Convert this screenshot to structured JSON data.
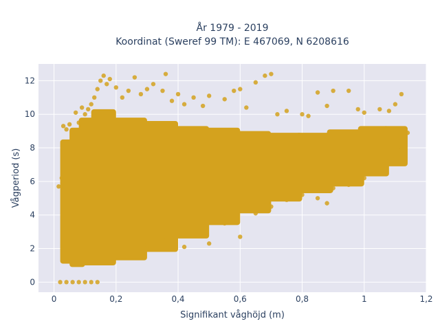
{
  "chart_data": {
    "type": "scatter",
    "title": "År 1979 - 2019",
    "subtitle": "Koordinat (Sweref 99 TM): E 467069, N 6208616",
    "xlabel": "Signifikant våghöjd (m)",
    "ylabel": "Vågperiod (s)",
    "xlim": [
      -0.05,
      1.2
    ],
    "ylim": [
      -0.6,
      13.0
    ],
    "xticks": [
      0,
      0.2,
      0.4,
      0.6,
      0.8,
      1,
      1.2
    ],
    "xtick_labels": [
      "0",
      "0,2",
      "0,4",
      "0,6",
      "0,8",
      "1",
      "1,2"
    ],
    "yticks": [
      0,
      2,
      4,
      6,
      8,
      10,
      12
    ],
    "ytick_labels": [
      "0",
      "2",
      "4",
      "6",
      "8",
      "10",
      "12"
    ],
    "grid": true,
    "background": "#e5e5f0",
    "marker_color": "#d4a21e",
    "points": [
      [
        0.02,
        0.0
      ],
      [
        0.04,
        0.0
      ],
      [
        0.06,
        0.0
      ],
      [
        0.08,
        0.0
      ],
      [
        0.1,
        0.0
      ],
      [
        0.12,
        0.0
      ],
      [
        0.14,
        0.0
      ],
      [
        0.015,
        5.7
      ],
      [
        0.025,
        6.2
      ],
      [
        0.03,
        9.3
      ],
      [
        0.04,
        9.1
      ],
      [
        0.05,
        9.4
      ],
      [
        0.06,
        8.9
      ],
      [
        0.065,
        8.6
      ],
      [
        0.07,
        10.1
      ],
      [
        0.08,
        9.5
      ],
      [
        0.09,
        10.4
      ],
      [
        0.1,
        10.0
      ],
      [
        0.11,
        10.3
      ],
      [
        0.12,
        10.6
      ],
      [
        0.13,
        11.0
      ],
      [
        0.14,
        11.5
      ],
      [
        0.15,
        12.0
      ],
      [
        0.16,
        12.3
      ],
      [
        0.17,
        11.8
      ],
      [
        0.18,
        12.1
      ],
      [
        0.2,
        11.6
      ],
      [
        0.22,
        11.0
      ],
      [
        0.24,
        11.4
      ],
      [
        0.26,
        12.2
      ],
      [
        0.28,
        11.2
      ],
      [
        0.3,
        11.5
      ],
      [
        0.32,
        11.8
      ],
      [
        0.35,
        11.4
      ],
      [
        0.36,
        12.4
      ],
      [
        0.38,
        10.8
      ],
      [
        0.4,
        11.2
      ],
      [
        0.42,
        10.6
      ],
      [
        0.45,
        11.0
      ],
      [
        0.48,
        10.5
      ],
      [
        0.5,
        11.1
      ],
      [
        0.55,
        10.9
      ],
      [
        0.58,
        11.4
      ],
      [
        0.6,
        11.5
      ],
      [
        0.62,
        10.4
      ],
      [
        0.65,
        11.9
      ],
      [
        0.68,
        12.3
      ],
      [
        0.7,
        12.4
      ],
      [
        0.72,
        10.0
      ],
      [
        0.75,
        10.2
      ],
      [
        0.8,
        10.0
      ],
      [
        0.82,
        9.9
      ],
      [
        0.85,
        11.3
      ],
      [
        0.88,
        10.5
      ],
      [
        0.9,
        11.4
      ],
      [
        0.95,
        11.4
      ],
      [
        0.98,
        10.3
      ],
      [
        1.0,
        10.1
      ],
      [
        1.05,
        10.3
      ],
      [
        1.08,
        10.2
      ],
      [
        1.1,
        10.6
      ],
      [
        1.12,
        11.2
      ],
      [
        1.14,
        8.9
      ],
      [
        0.3,
        2.2
      ],
      [
        0.35,
        2.6
      ],
      [
        0.42,
        2.1
      ],
      [
        0.45,
        3.1
      ],
      [
        0.5,
        2.3
      ],
      [
        0.55,
        3.5
      ],
      [
        0.6,
        2.7
      ],
      [
        0.65,
        4.1
      ],
      [
        0.7,
        4.5
      ],
      [
        0.75,
        4.9
      ],
      [
        0.8,
        5.2
      ],
      [
        0.85,
        5.0
      ],
      [
        0.88,
        4.7
      ],
      [
        0.9,
        5.6
      ],
      [
        0.95,
        5.8
      ],
      [
        1.0,
        6.2
      ],
      [
        1.05,
        6.7
      ],
      [
        1.08,
        7.2
      ],
      [
        1.1,
        7.5
      ],
      [
        1.12,
        7.9
      ],
      [
        1.13,
        8.5
      ]
    ],
    "density_bands": [
      {
        "x0": 0.02,
        "x1": 0.06,
        "y0": 1.1,
        "y1": 8.5
      },
      {
        "x0": 0.05,
        "x1": 0.1,
        "y0": 0.9,
        "y1": 9.2
      },
      {
        "x0": 0.08,
        "x1": 0.15,
        "y0": 1.0,
        "y1": 9.8
      },
      {
        "x0": 0.12,
        "x1": 0.2,
        "y0": 1.0,
        "y1": 10.3
      },
      {
        "x0": 0.18,
        "x1": 0.3,
        "y0": 1.3,
        "y1": 9.8
      },
      {
        "x0": 0.28,
        "x1": 0.4,
        "y0": 1.8,
        "y1": 9.6
      },
      {
        "x0": 0.38,
        "x1": 0.5,
        "y0": 2.6,
        "y1": 9.3
      },
      {
        "x0": 0.48,
        "x1": 0.6,
        "y0": 3.4,
        "y1": 9.2
      },
      {
        "x0": 0.58,
        "x1": 0.7,
        "y0": 4.1,
        "y1": 9.0
      },
      {
        "x0": 0.68,
        "x1": 0.8,
        "y0": 4.8,
        "y1": 8.9
      },
      {
        "x0": 0.78,
        "x1": 0.9,
        "y0": 5.3,
        "y1": 8.9
      },
      {
        "x0": 0.88,
        "x1": 1.0,
        "y0": 5.7,
        "y1": 9.1
      },
      {
        "x0": 0.98,
        "x1": 1.08,
        "y0": 6.3,
        "y1": 9.3
      },
      {
        "x0": 1.06,
        "x1": 1.14,
        "y0": 6.9,
        "y1": 9.3
      }
    ]
  }
}
